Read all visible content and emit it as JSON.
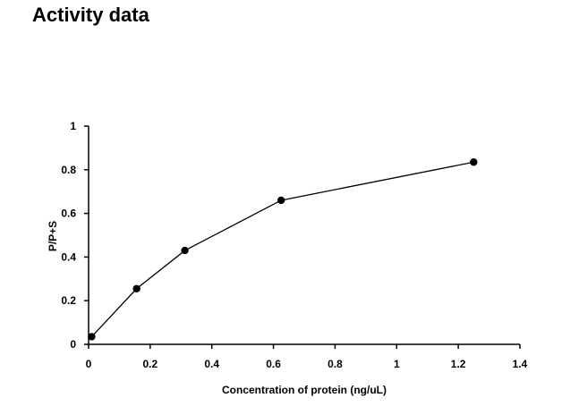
{
  "page": {
    "title": "Activity data"
  },
  "chart_data": {
    "type": "line",
    "title": "",
    "xlabel": "Concentration of protein (ng/uL)",
    "ylabel": "P/P+S",
    "xlim": [
      0,
      1.4
    ],
    "ylim": [
      0,
      1
    ],
    "xticks": [
      0,
      0.2,
      0.4,
      0.6,
      0.8,
      1,
      1.2,
      1.4
    ],
    "yticks": [
      0,
      0.2,
      0.4,
      0.6,
      0.8,
      1
    ],
    "xtick_labels": [
      "0",
      "0.2",
      "0.4",
      "0.6",
      "0.8",
      "1",
      "1.2",
      "1.4"
    ],
    "ytick_labels": [
      "0",
      "0.2",
      "0.4",
      "0.6",
      "0.8",
      "1"
    ],
    "grid": false,
    "legend": "none",
    "series": [
      {
        "color": "#000000",
        "marker": "circle",
        "x": [
          0.01,
          0.156,
          0.3125,
          0.625,
          1.25
        ],
        "y": [
          0.035,
          0.255,
          0.43,
          0.66,
          0.835
        ]
      }
    ]
  }
}
